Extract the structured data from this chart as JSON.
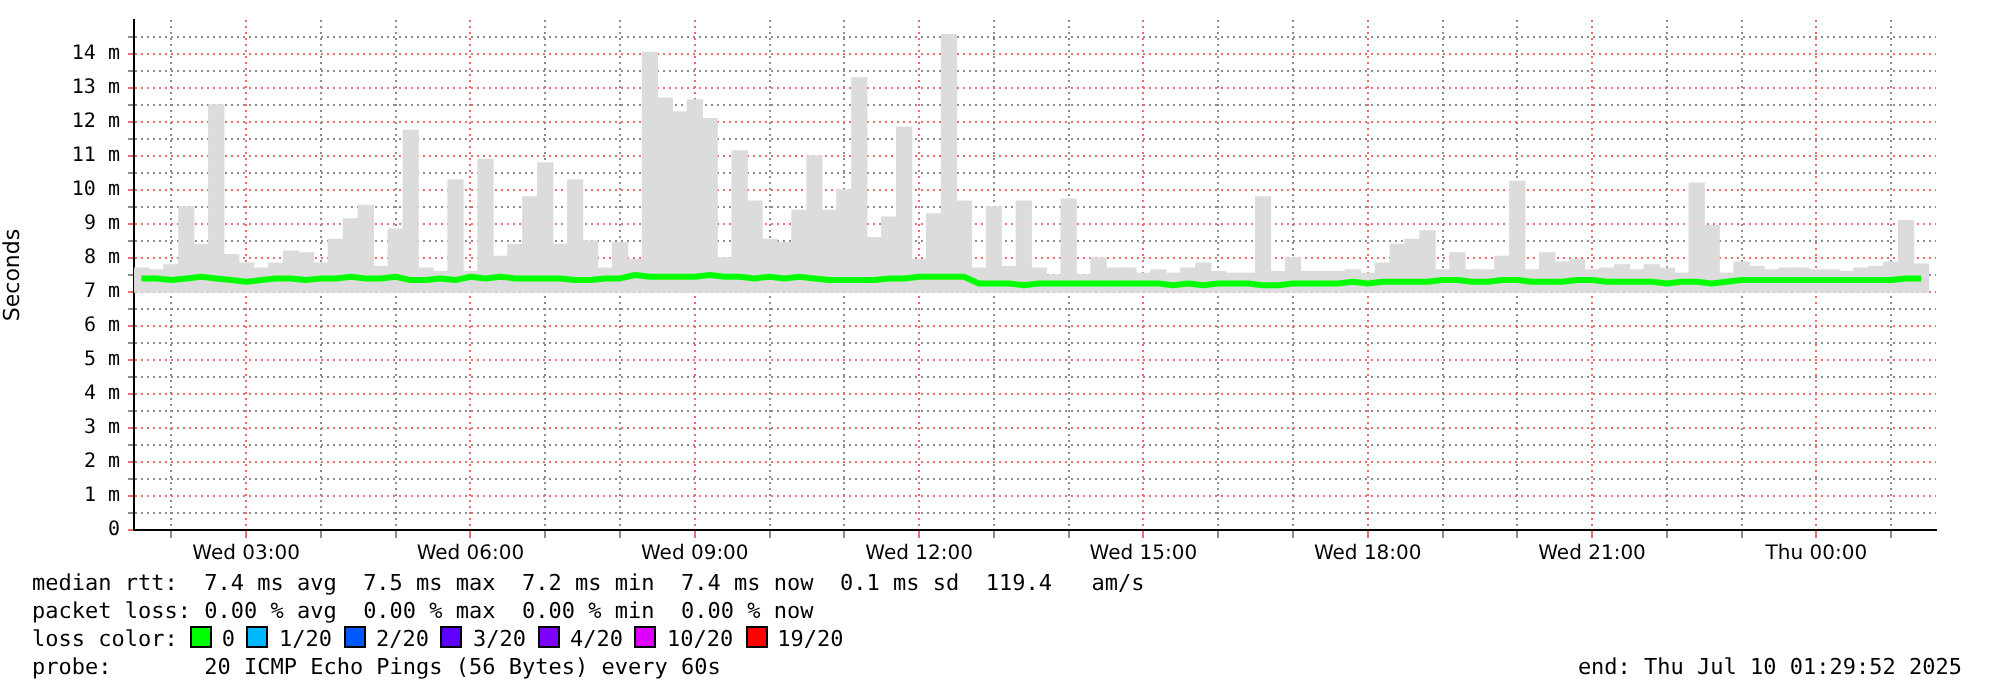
{
  "chart_data": {
    "type": "bar",
    "ylabel": "Seconds",
    "legend": "bottom",
    "legend_title": "loss color:",
    "grid": true,
    "x": [
      "2025-07-09T01:36",
      "2025-07-09T01:48",
      "2025-07-09T02:00",
      "2025-07-09T02:12",
      "2025-07-09T02:24",
      "2025-07-09T02:36",
      "2025-07-09T02:48",
      "2025-07-09T03:00",
      "2025-07-09T03:12",
      "2025-07-09T03:24",
      "2025-07-09T03:36",
      "2025-07-09T03:48",
      "2025-07-09T04:00",
      "2025-07-09T04:12",
      "2025-07-09T04:24",
      "2025-07-09T04:36",
      "2025-07-09T04:48",
      "2025-07-09T05:00",
      "2025-07-09T05:12",
      "2025-07-09T05:24",
      "2025-07-09T05:36",
      "2025-07-09T05:48",
      "2025-07-09T06:00",
      "2025-07-09T06:12",
      "2025-07-09T06:24",
      "2025-07-09T06:36",
      "2025-07-09T06:48",
      "2025-07-09T07:00",
      "2025-07-09T07:12",
      "2025-07-09T07:24",
      "2025-07-09T07:36",
      "2025-07-09T07:48",
      "2025-07-09T08:00",
      "2025-07-09T08:12",
      "2025-07-09T08:24",
      "2025-07-09T08:36",
      "2025-07-09T08:48",
      "2025-07-09T09:00",
      "2025-07-09T09:12",
      "2025-07-09T09:24",
      "2025-07-09T09:36",
      "2025-07-09T09:48",
      "2025-07-09T10:00",
      "2025-07-09T10:12",
      "2025-07-09T10:24",
      "2025-07-09T10:36",
      "2025-07-09T10:48",
      "2025-07-09T11:00",
      "2025-07-09T11:12",
      "2025-07-09T11:24",
      "2025-07-09T11:36",
      "2025-07-09T11:48",
      "2025-07-09T12:00",
      "2025-07-09T12:12",
      "2025-07-09T12:24",
      "2025-07-09T12:36",
      "2025-07-09T12:48",
      "2025-07-09T13:00",
      "2025-07-09T13:12",
      "2025-07-09T13:24",
      "2025-07-09T13:36",
      "2025-07-09T13:48",
      "2025-07-09T14:00",
      "2025-07-09T14:12",
      "2025-07-09T14:24",
      "2025-07-09T14:36",
      "2025-07-09T14:48",
      "2025-07-09T15:00",
      "2025-07-09T15:12",
      "2025-07-09T15:24",
      "2025-07-09T15:36",
      "2025-07-09T15:48",
      "2025-07-09T16:00",
      "2025-07-09T16:12",
      "2025-07-09T16:24",
      "2025-07-09T16:36",
      "2025-07-09T16:48",
      "2025-07-09T17:00",
      "2025-07-09T17:12",
      "2025-07-09T17:24",
      "2025-07-09T17:36",
      "2025-07-09T17:48",
      "2025-07-09T18:00",
      "2025-07-09T18:12",
      "2025-07-09T18:24",
      "2025-07-09T18:36",
      "2025-07-09T18:48",
      "2025-07-09T19:00",
      "2025-07-09T19:12",
      "2025-07-09T19:24",
      "2025-07-09T19:36",
      "2025-07-09T19:48",
      "2025-07-09T20:00",
      "2025-07-09T20:12",
      "2025-07-09T20:24",
      "2025-07-09T20:36",
      "2025-07-09T20:48",
      "2025-07-09T21:00",
      "2025-07-09T21:12",
      "2025-07-09T21:24",
      "2025-07-09T21:36",
      "2025-07-09T21:48",
      "2025-07-09T22:00",
      "2025-07-09T22:12",
      "2025-07-09T22:24",
      "2025-07-09T22:36",
      "2025-07-09T22:48",
      "2025-07-09T23:00",
      "2025-07-09T23:12",
      "2025-07-09T23:24",
      "2025-07-09T23:36",
      "2025-07-09T23:48",
      "2025-07-10T00:00",
      "2025-07-10T00:12",
      "2025-07-10T00:24",
      "2025-07-10T00:36",
      "2025-07-10T00:48",
      "2025-07-10T01:00",
      "2025-07-10T01:12",
      "2025-07-10T01:24"
    ],
    "xlim": [
      "2025-07-09T01:30",
      "2025-07-10T01:36"
    ],
    "xticks": [
      {
        "value": "2025-07-09T02:00",
        "label": null
      },
      {
        "value": "2025-07-09T03:00",
        "label": "Wed 03:00"
      },
      {
        "value": "2025-07-09T04:00",
        "label": null
      },
      {
        "value": "2025-07-09T05:00",
        "label": null
      },
      {
        "value": "2025-07-09T06:00",
        "label": "Wed 06:00"
      },
      {
        "value": "2025-07-09T07:00",
        "label": null
      },
      {
        "value": "2025-07-09T08:00",
        "label": null
      },
      {
        "value": "2025-07-09T09:00",
        "label": "Wed 09:00"
      },
      {
        "value": "2025-07-09T10:00",
        "label": null
      },
      {
        "value": "2025-07-09T11:00",
        "label": null
      },
      {
        "value": "2025-07-09T12:00",
        "label": "Wed 12:00"
      },
      {
        "value": "2025-07-09T13:00",
        "label": null
      },
      {
        "value": "2025-07-09T14:00",
        "label": null
      },
      {
        "value": "2025-07-09T15:00",
        "label": "Wed 15:00"
      },
      {
        "value": "2025-07-09T16:00",
        "label": null
      },
      {
        "value": "2025-07-09T17:00",
        "label": null
      },
      {
        "value": "2025-07-09T18:00",
        "label": "Wed 18:00"
      },
      {
        "value": "2025-07-09T19:00",
        "label": null
      },
      {
        "value": "2025-07-09T20:00",
        "label": null
      },
      {
        "value": "2025-07-09T21:00",
        "label": "Wed 21:00"
      },
      {
        "value": "2025-07-09T22:00",
        "label": null
      },
      {
        "value": "2025-07-09T23:00",
        "label": null
      },
      {
        "value": "2025-07-10T00:00",
        "label": "Thu 00:00"
      },
      {
        "value": "2025-07-10T01:00",
        "label": null
      }
    ],
    "ylim": [
      0,
      15
    ],
    "yticks": [
      0,
      {
        "value": 0.5,
        "label": null
      },
      {
        "value": 1,
        "label": "1 m"
      },
      {
        "value": 1.5,
        "label": null
      },
      {
        "value": 2,
        "label": "2 m"
      },
      {
        "value": 2.5,
        "label": null
      },
      {
        "value": 3,
        "label": "3 m"
      },
      {
        "value": 3.5,
        "label": null
      },
      {
        "value": 4,
        "label": "4 m"
      },
      {
        "value": 4.5,
        "label": null
      },
      {
        "value": 5,
        "label": "5 m"
      },
      {
        "value": 5.5,
        "label": null
      },
      {
        "value": 6,
        "label": "6 m"
      },
      {
        "value": 6.5,
        "label": null
      },
      {
        "value": 7,
        "label": "7 m"
      },
      {
        "value": 7.5,
        "label": null
      },
      {
        "value": 8,
        "label": "8 m"
      },
      {
        "value": 8.5,
        "label": null
      },
      {
        "value": 9,
        "label": "9 m"
      },
      {
        "value": 9.5,
        "label": null
      },
      {
        "value": 10,
        "label": "10 m"
      },
      {
        "value": 10.5,
        "label": null
      },
      {
        "value": 11,
        "label": "11 m"
      },
      {
        "value": 11.5,
        "label": null
      },
      {
        "value": 12,
        "label": "12 m"
      },
      {
        "value": 12.5,
        "label": null
      },
      {
        "value": 13,
        "label": "13 m"
      },
      {
        "value": 13.5,
        "label": null
      },
      {
        "value": 14,
        "label": "14 m"
      },
      {
        "value": 14.5,
        "label": null
      }
    ],
    "series": [
      {
        "color": "#dcdcdc",
        "base": [
          7,
          7,
          7,
          7,
          7,
          7,
          7,
          7,
          7,
          7,
          7,
          7,
          7,
          7,
          7,
          7,
          7,
          7,
          7,
          7,
          7,
          7,
          7,
          7,
          7,
          7,
          7,
          7,
          7,
          7,
          7,
          7,
          7,
          7,
          7,
          7,
          7,
          7,
          7,
          7,
          7,
          7,
          7,
          7,
          7,
          7,
          7,
          7,
          7,
          7,
          7,
          7,
          7,
          7,
          7,
          7,
          7,
          7,
          7,
          7,
          7,
          7,
          7,
          7,
          7,
          7,
          7,
          7,
          7,
          7,
          7,
          7,
          7,
          7,
          7,
          7,
          7,
          7,
          7,
          7,
          7,
          7,
          7,
          7,
          7,
          7,
          7,
          7,
          7,
          7,
          7,
          7,
          7,
          7,
          7,
          7,
          7,
          7,
          7,
          7,
          7,
          7,
          7,
          7,
          7,
          7,
          7,
          7,
          7,
          7,
          7,
          7,
          7,
          7,
          7,
          7,
          7,
          7,
          7,
          7
        ],
        "values": [
          0.7,
          0.65,
          0.8,
          2.5,
          1.4,
          5.5,
          1.1,
          0.85,
          0.7,
          0.85,
          1.2,
          1.15,
          0.85,
          1.55,
          2.15,
          2.55,
          0.75,
          1.85,
          4.75,
          0.7,
          0.6,
          3.3,
          0.6,
          3.9,
          1.05,
          1.4,
          2.8,
          3.8,
          1.4,
          3.3,
          1.5,
          0.7,
          1.45,
          0.95,
          7.05,
          5.7,
          5.3,
          5.65,
          5.1,
          1.0,
          4.15,
          2.67,
          1.55,
          1.45,
          2.4,
          4.0,
          2.4,
          3.0,
          6.3,
          1.6,
          2.2,
          4.85,
          0.95,
          2.3,
          7.57,
          2.67,
          0.7,
          2.5,
          0.75,
          2.67,
          0.7,
          0.5,
          2.73,
          0.5,
          1.0,
          0.7,
          0.7,
          0.55,
          0.65,
          0.55,
          0.7,
          0.85,
          0.6,
          0.55,
          0.55,
          2.8,
          0.6,
          1.0,
          0.6,
          0.6,
          0.6,
          0.65,
          0.55,
          0.85,
          1.4,
          1.55,
          1.8,
          0.65,
          1.15,
          0.65,
          0.65,
          1.05,
          3.25,
          0.65,
          1.15,
          0.88,
          0.95,
          0.65,
          0.7,
          0.8,
          0.65,
          0.8,
          0.7,
          0.55,
          3.2,
          1.95,
          0.55,
          0.88,
          0.75,
          0.65,
          0.7,
          0.7,
          0.65,
          0.65,
          0.6,
          0.7,
          0.75,
          0.88,
          2.1,
          0.82
        ]
      },
      {
        "type": "line",
        "name": "0",
        "color": "#00ff00",
        "values": [
          7.4,
          7.4,
          7.35,
          7.4,
          7.45,
          7.4,
          7.35,
          7.3,
          7.35,
          7.4,
          7.4,
          7.35,
          7.4,
          7.4,
          7.45,
          7.4,
          7.4,
          7.45,
          7.35,
          7.35,
          7.4,
          7.35,
          7.45,
          7.4,
          7.45,
          7.4,
          7.4,
          7.4,
          7.4,
          7.35,
          7.35,
          7.4,
          7.4,
          7.5,
          7.45,
          7.45,
          7.45,
          7.45,
          7.5,
          7.45,
          7.45,
          7.4,
          7.45,
          7.4,
          7.45,
          7.4,
          7.35,
          7.35,
          7.35,
          7.35,
          7.4,
          7.4,
          7.45,
          7.45,
          7.45,
          7.45,
          7.25,
          7.25,
          7.25,
          7.2,
          7.25,
          7.25,
          7.25,
          7.25,
          7.25,
          7.25,
          7.25,
          7.25,
          7.25,
          7.2,
          7.25,
          7.2,
          7.25,
          7.25,
          7.25,
          7.2,
          7.2,
          7.25,
          7.25,
          7.25,
          7.25,
          7.3,
          7.25,
          7.3,
          7.3,
          7.3,
          7.3,
          7.35,
          7.35,
          7.3,
          7.3,
          7.35,
          7.35,
          7.3,
          7.3,
          7.3,
          7.35,
          7.35,
          7.3,
          7.3,
          7.3,
          7.3,
          7.25,
          7.3,
          7.3,
          7.25,
          7.3,
          7.35,
          7.35,
          7.35,
          7.35,
          7.35,
          7.35,
          7.35,
          7.35,
          7.35,
          7.35,
          7.35,
          7.4,
          7.4
        ]
      },
      {
        "type": "line",
        "name": "1/20",
        "color": "#00b8ff",
        "values": [
          null,
          null,
          null,
          null,
          null,
          null,
          null,
          null,
          null,
          null,
          null,
          null,
          null,
          null,
          null,
          null,
          null,
          null,
          null,
          null,
          null,
          null,
          null,
          null,
          null,
          null,
          null,
          null,
          null,
          null,
          null,
          null,
          null,
          null,
          null,
          null,
          null,
          null,
          null,
          null,
          null,
          null,
          null,
          null,
          null,
          null,
          null,
          null,
          null,
          null,
          null,
          null,
          null,
          null,
          null,
          null,
          null,
          null,
          null,
          null,
          null,
          null,
          null,
          null,
          null,
          null,
          null,
          null,
          null,
          null,
          null,
          null,
          null,
          null,
          null,
          null,
          null,
          null,
          null,
          null,
          null,
          null,
          null,
          null,
          null,
          null,
          null,
          null,
          null,
          null,
          null,
          null,
          null,
          null,
          null,
          null,
          null,
          null,
          null,
          null,
          null,
          null,
          null,
          null,
          null,
          null,
          null,
          null,
          null,
          null,
          null,
          null,
          null,
          null,
          null,
          null,
          null,
          null,
          null,
          null
        ]
      },
      {
        "type": "line",
        "name": "2/20",
        "color": "#0059ff",
        "values": [
          null,
          null,
          null,
          null,
          null,
          null,
          null,
          null,
          null,
          null,
          null,
          null,
          null,
          null,
          null,
          null,
          null,
          null,
          null,
          null,
          null,
          null,
          null,
          null,
          null,
          null,
          null,
          null,
          null,
          null,
          null,
          null,
          null,
          null,
          null,
          null,
          null,
          null,
          null,
          null,
          null,
          null,
          null,
          null,
          null,
          null,
          null,
          null,
          null,
          null,
          null,
          null,
          null,
          null,
          null,
          null,
          null,
          null,
          null,
          null,
          null,
          null,
          null,
          null,
          null,
          null,
          null,
          null,
          null,
          null,
          null,
          null,
          null,
          null,
          null,
          null,
          null,
          null,
          null,
          null,
          null,
          null,
          null,
          null,
          null,
          null,
          null,
          null,
          null,
          null,
          null,
          null,
          null,
          null,
          null,
          null,
          null,
          null,
          null,
          null,
          null,
          null,
          null,
          null,
          null,
          null,
          null,
          null,
          null,
          null,
          null,
          null,
          null,
          null,
          null,
          null,
          null,
          null,
          null,
          null
        ]
      },
      {
        "type": "line",
        "name": "3/20",
        "color": "#5e00ff",
        "values": [
          null,
          null,
          null,
          null,
          null,
          null,
          null,
          null,
          null,
          null,
          null,
          null,
          null,
          null,
          null,
          null,
          null,
          null,
          null,
          null,
          null,
          null,
          null,
          null,
          null,
          null,
          null,
          null,
          null,
          null,
          null,
          null,
          null,
          null,
          null,
          null,
          null,
          null,
          null,
          null,
          null,
          null,
          null,
          null,
          null,
          null,
          null,
          null,
          null,
          null,
          null,
          null,
          null,
          null,
          null,
          null,
          null,
          null,
          null,
          null,
          null,
          null,
          null,
          null,
          null,
          null,
          null,
          null,
          null,
          null,
          null,
          null,
          null,
          null,
          null,
          null,
          null,
          null,
          null,
          null,
          null,
          null,
          null,
          null,
          null,
          null,
          null,
          null,
          null,
          null,
          null,
          null,
          null,
          null,
          null,
          null,
          null,
          null,
          null,
          null,
          null,
          null,
          null,
          null,
          null,
          null,
          null,
          null,
          null,
          null,
          null,
          null,
          null,
          null,
          null,
          null,
          null,
          null,
          null,
          null
        ]
      },
      {
        "type": "line",
        "name": "4/20",
        "color": "#7e00ff",
        "values": [
          null,
          null,
          null,
          null,
          null,
          null,
          null,
          null,
          null,
          null,
          null,
          null,
          null,
          null,
          null,
          null,
          null,
          null,
          null,
          null,
          null,
          null,
          null,
          null,
          null,
          null,
          null,
          null,
          null,
          null,
          null,
          null,
          null,
          null,
          null,
          null,
          null,
          null,
          null,
          null,
          null,
          null,
          null,
          null,
          null,
          null,
          null,
          null,
          null,
          null,
          null,
          null,
          null,
          null,
          null,
          null,
          null,
          null,
          null,
          null,
          null,
          null,
          null,
          null,
          null,
          null,
          null,
          null,
          null,
          null,
          null,
          null,
          null,
          null,
          null,
          null,
          null,
          null,
          null,
          null,
          null,
          null,
          null,
          null,
          null,
          null,
          null,
          null,
          null,
          null,
          null,
          null,
          null,
          null,
          null,
          null,
          null,
          null,
          null,
          null,
          null,
          null,
          null,
          null,
          null,
          null,
          null,
          null,
          null,
          null,
          null,
          null,
          null,
          null,
          null,
          null,
          null,
          null,
          null,
          null
        ]
      },
      {
        "type": "line",
        "name": "10/20",
        "color": "#dd00ff",
        "values": [
          null,
          null,
          null,
          null,
          null,
          null,
          null,
          null,
          null,
          null,
          null,
          null,
          null,
          null,
          null,
          null,
          null,
          null,
          null,
          null,
          null,
          null,
          null,
          null,
          null,
          null,
          null,
          null,
          null,
          null,
          null,
          null,
          null,
          null,
          null,
          null,
          null,
          null,
          null,
          null,
          null,
          null,
          null,
          null,
          null,
          null,
          null,
          null,
          null,
          null,
          null,
          null,
          null,
          null,
          null,
          null,
          null,
          null,
          null,
          null,
          null,
          null,
          null,
          null,
          null,
          null,
          null,
          null,
          null,
          null,
          null,
          null,
          null,
          null,
          null,
          null,
          null,
          null,
          null,
          null,
          null,
          null,
          null,
          null,
          null,
          null,
          null,
          null,
          null,
          null,
          null,
          null,
          null,
          null,
          null,
          null,
          null,
          null,
          null,
          null,
          null,
          null,
          null,
          null,
          null,
          null,
          null,
          null,
          null,
          null,
          null,
          null,
          null,
          null,
          null,
          null,
          null,
          null,
          null,
          null
        ]
      },
      {
        "type": "line",
        "name": "19/20",
        "color": "#ff0000",
        "values": [
          null,
          null,
          null,
          null,
          null,
          null,
          null,
          null,
          null,
          null,
          null,
          null,
          null,
          null,
          null,
          null,
          null,
          null,
          null,
          null,
          null,
          null,
          null,
          null,
          null,
          null,
          null,
          null,
          null,
          null,
          null,
          null,
          null,
          null,
          null,
          null,
          null,
          null,
          null,
          null,
          null,
          null,
          null,
          null,
          null,
          null,
          null,
          null,
          null,
          null,
          null,
          null,
          null,
          null,
          null,
          null,
          null,
          null,
          null,
          null,
          null,
          null,
          null,
          null,
          null,
          null,
          null,
          null,
          null,
          null,
          null,
          null,
          null,
          null,
          null,
          null,
          null,
          null,
          null,
          null,
          null,
          null,
          null,
          null,
          null,
          null,
          null,
          null,
          null,
          null,
          null,
          null,
          null,
          null,
          null,
          null,
          null,
          null,
          null,
          null,
          null,
          null,
          null,
          null,
          null,
          null,
          null,
          null,
          null,
          null,
          null,
          null,
          null,
          null,
          null,
          null,
          null,
          null,
          null,
          null
        ]
      }
    ],
    "annotations": [
      "median rtt:  7.4 ms avg  7.5 ms max  7.2 ms min  7.4 ms now  0.1 ms sd  119.4   am/s",
      "packet loss: 0.00 % avg  0.00 % max  0.00 % min  0.00 % now",
      "probe:       20 ICMP Echo Pings (56 Bytes) every 60s",
      "end: Thu Jul 10 01:29:52 2025"
    ]
  }
}
